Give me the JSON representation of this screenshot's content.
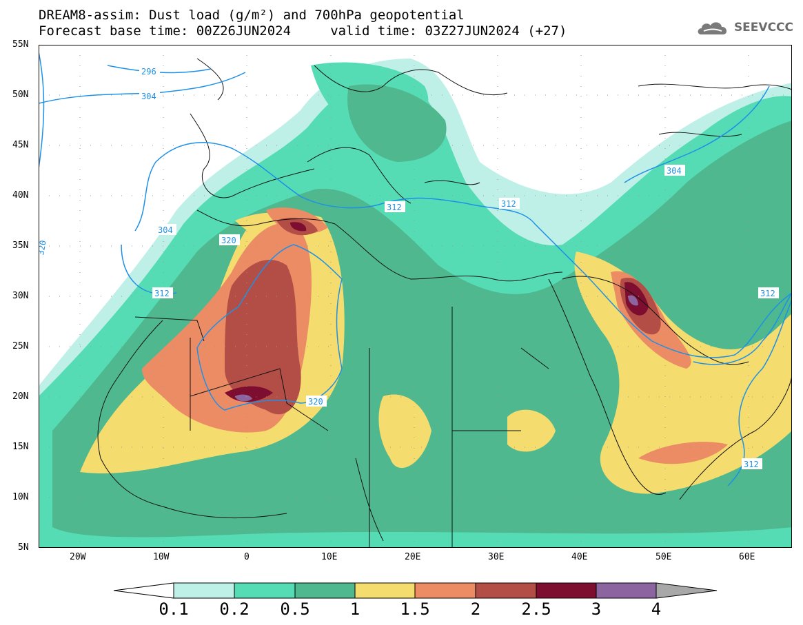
{
  "title_line1": "DREAM8-assim: Dust load (g/m²) and 700hPa geopotential",
  "title_line2": "Forecast base time: 00Z26JUN2024     valid time: 03Z27JUN2024 (+27)",
  "brand": {
    "name": "SEEVCCC",
    "icon": "cloud-icon"
  },
  "map": {
    "region": {
      "lon_min": -25,
      "lon_max": 65,
      "lat_min": 5,
      "lat_max": 55
    },
    "lat_labels": [
      "55N",
      "50N",
      "45N",
      "40N",
      "35N",
      "30N",
      "25N",
      "20N",
      "15N",
      "10N",
      "5N"
    ],
    "lon_labels": [
      "20W",
      "10W",
      "0",
      "10E",
      "20E",
      "30E",
      "40E",
      "50E",
      "60E"
    ],
    "contour_labels": [
      "296",
      "304",
      "304",
      "304",
      "312",
      "312",
      "312",
      "312",
      "320",
      "320",
      "320",
      "312"
    ]
  },
  "legend": {
    "levels": [
      "0.1",
      "0.2",
      "0.5",
      "1",
      "1.5",
      "2",
      "2.5",
      "3",
      "4"
    ],
    "colors": [
      "#ffffff",
      "#bff0e8",
      "#55dcb4",
      "#4fb88e",
      "#f4dc6e",
      "#ec8c64",
      "#b24e46",
      "#7e0e30",
      "#8c64a0",
      "#a8a8a8"
    ]
  }
}
